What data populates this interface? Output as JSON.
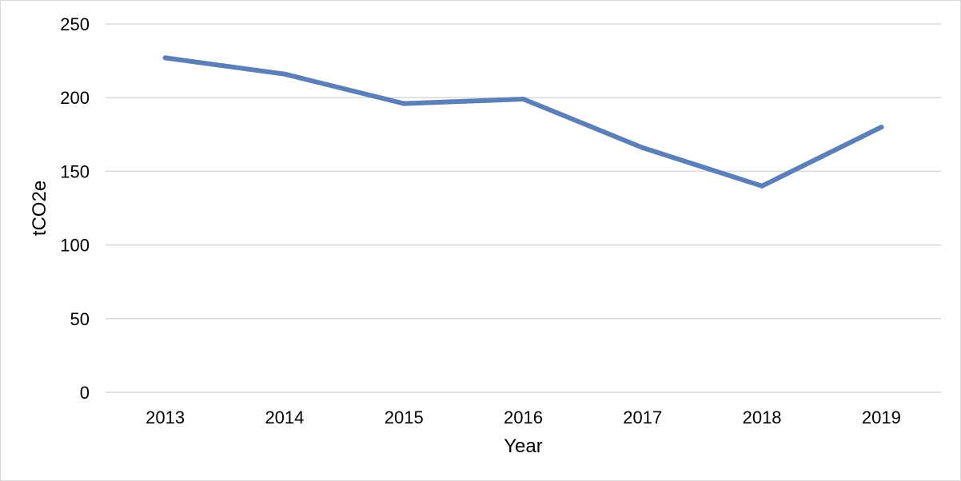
{
  "chart_data": {
    "type": "line",
    "title": "",
    "xlabel": "Year",
    "ylabel": "tCO2e",
    "categories": [
      "2013",
      "2014",
      "2015",
      "2016",
      "2017",
      "2018",
      "2019"
    ],
    "series": [
      {
        "values": [
          227,
          216,
          196,
          199,
          166,
          140,
          180
        ],
        "color": "#5b7fb8"
      }
    ],
    "ylim": [
      0,
      250
    ],
    "yticks": [
      "0",
      "50",
      "100",
      "150",
      "200",
      "250"
    ],
    "grid": true,
    "gridColor": "#d9d9d9",
    "legend": "none"
  }
}
